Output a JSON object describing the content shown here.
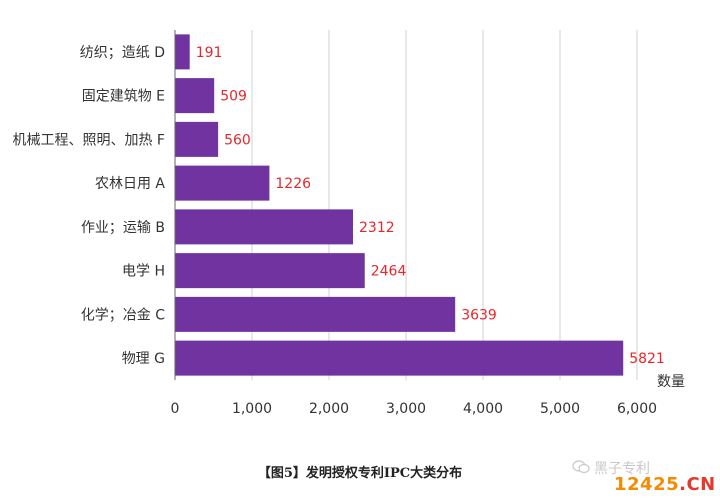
{
  "chart_data": {
    "type": "bar",
    "orientation": "horizontal",
    "categories": [
      "纺织；造纸 D",
      "固定建筑物 E",
      "机械工程、照明、加热 F",
      "农林日用 A",
      "作业；运输 B",
      "电学 H",
      "化学；冶金 C",
      "物理 G"
    ],
    "values": [
      191,
      509,
      560,
      1226,
      2312,
      2464,
      3639,
      5821
    ],
    "xlabel": "数量",
    "xlim": [
      0,
      6000
    ],
    "xticks": [
      0,
      1000,
      2000,
      3000,
      4000,
      5000,
      6000
    ],
    "xtick_labels": [
      "0",
      "1,000",
      "2,000",
      "3,000",
      "4,000",
      "5,000",
      "6,000"
    ],
    "grid": "vertical",
    "bar_color": "#7033a0",
    "label_color": "#e8262a"
  },
  "caption": "【图5】发明授权专利IPC大类分布",
  "watermark": {
    "text": "黑子专利",
    "icon": "wechat-icon",
    "site_main": "12425",
    "site_suffix": ".CN"
  }
}
